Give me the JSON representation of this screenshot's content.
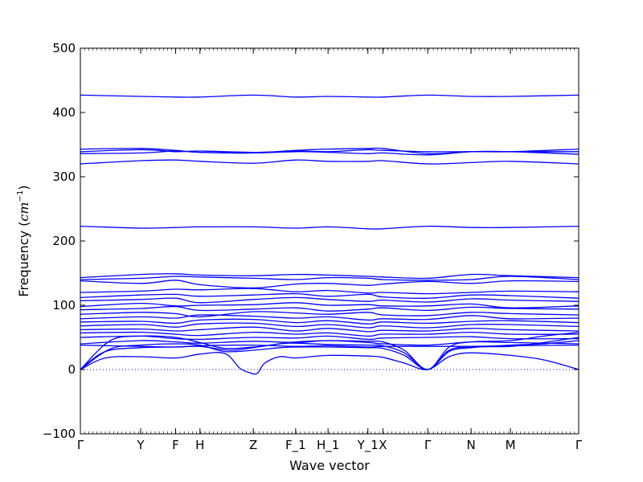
{
  "chart_data": {
    "type": "line",
    "title": "",
    "xlabel": "Wave vector",
    "ylabel_text": "Frequency (",
    "ylabel_unit_base": "cm",
    "ylabel_unit_exp": "−1",
    "ylabel_close": ")",
    "ylim": [
      -100,
      500
    ],
    "yticks": [
      -100,
      0,
      100,
      200,
      300,
      400,
      500
    ],
    "ytick_labels": [
      "−100",
      "0",
      "100",
      "200",
      "300",
      "400",
      "500"
    ],
    "x_high_symmetry_points": [
      {
        "label": "Γ",
        "x": 0.0
      },
      {
        "label": "Y",
        "x": 0.121
      },
      {
        "label": "F",
        "x": 0.191
      },
      {
        "label": "H",
        "x": 0.24
      },
      {
        "label": "Z",
        "x": 0.347
      },
      {
        "label": "F_1",
        "x": 0.432
      },
      {
        "label": "H_1",
        "x": 0.497
      },
      {
        "label": "Y_1",
        "x": 0.577
      },
      {
        "label": "X",
        "x": 0.607
      },
      {
        "label": "Γ",
        "x": 0.697
      },
      {
        "label": "N",
        "x": 0.784
      },
      {
        "label": "M",
        "x": 0.863
      },
      {
        "label": "Γ",
        "x": 1.0
      }
    ],
    "xlim": [
      0,
      1
    ],
    "zero_line": true,
    "line_color": "#0000ff",
    "series": [
      {
        "x": [
          0,
          0.121,
          0.191,
          0.24,
          0.347,
          0.432,
          0.497,
          0.577,
          0.607,
          0.697,
          0.784,
          0.863,
          1
        ],
        "values": [
          427,
          425,
          424,
          424,
          427,
          424,
          425,
          424,
          424,
          427,
          425,
          425,
          427
        ]
      },
      {
        "x": [
          0,
          0.121,
          0.191,
          0.24,
          0.347,
          0.432,
          0.497,
          0.577,
          0.607,
          0.697,
          0.784,
          0.863,
          1
        ],
        "values": [
          343,
          344,
          341,
          338,
          337,
          341,
          343,
          344,
          344,
          336,
          339,
          339,
          343
        ]
      },
      {
        "x": [
          0,
          0.121,
          0.191,
          0.24,
          0.347,
          0.432,
          0.497,
          0.577,
          0.607,
          0.697,
          0.784,
          0.863,
          1
        ],
        "values": [
          339,
          342,
          339,
          340,
          338,
          340,
          339,
          342,
          341,
          339,
          339,
          339,
          339
        ]
      },
      {
        "x": [
          0,
          0.121,
          0.191,
          0.24,
          0.347,
          0.432,
          0.497,
          0.577,
          0.607,
          0.697,
          0.784,
          0.863,
          1
        ],
        "values": [
          336,
          337,
          340,
          338,
          337,
          339,
          338,
          336,
          337,
          334,
          339,
          339,
          335
        ]
      },
      {
        "x": [
          0,
          0.121,
          0.191,
          0.24,
          0.347,
          0.432,
          0.497,
          0.577,
          0.607,
          0.697,
          0.784,
          0.863,
          1
        ],
        "values": [
          320,
          325,
          326,
          324,
          321,
          326,
          324,
          324,
          325,
          320,
          322,
          324,
          320
        ]
      },
      {
        "x": [
          0,
          0.121,
          0.191,
          0.24,
          0.347,
          0.432,
          0.497,
          0.577,
          0.607,
          0.697,
          0.784,
          0.863,
          1
        ],
        "values": [
          223,
          220,
          221,
          222,
          222,
          220,
          222,
          219,
          219,
          223,
          221,
          221,
          223
        ]
      },
      {
        "x": [
          0,
          0.121,
          0.191,
          0.24,
          0.347,
          0.432,
          0.497,
          0.577,
          0.607,
          0.697,
          0.784,
          0.863,
          1
        ],
        "values": [
          143,
          148,
          149,
          147,
          146,
          148,
          147,
          145,
          144,
          142,
          148,
          146,
          143
        ]
      },
      {
        "x": [
          0,
          0.121,
          0.191,
          0.24,
          0.347,
          0.432,
          0.497,
          0.577,
          0.607,
          0.697,
          0.784,
          0.863,
          1
        ],
        "values": [
          140,
          142,
          145,
          144,
          142,
          140,
          143,
          142,
          140,
          139,
          140,
          145,
          140
        ]
      },
      {
        "x": [
          0,
          0.121,
          0.191,
          0.24,
          0.347,
          0.432,
          0.497,
          0.577,
          0.607,
          0.697,
          0.784,
          0.863,
          1
        ],
        "values": [
          138,
          134,
          139,
          132,
          127,
          133,
          134,
          131,
          133,
          137,
          134,
          138,
          137
        ]
      },
      {
        "x": [
          0,
          0.121,
          0.191,
          0.24,
          0.347,
          0.432,
          0.497,
          0.577,
          0.607,
          0.697,
          0.784,
          0.863,
          1
        ],
        "values": [
          120,
          122,
          125,
          124,
          126,
          121,
          123,
          119,
          120,
          118,
          120,
          122,
          121
        ]
      },
      {
        "x": [
          0,
          0.121,
          0.191,
          0.24,
          0.347,
          0.432,
          0.497,
          0.577,
          0.607,
          0.697,
          0.784,
          0.863,
          1
        ],
        "values": [
          112,
          116,
          117,
          114,
          116,
          118,
          114,
          117,
          113,
          111,
          116,
          115,
          111
        ]
      },
      {
        "x": [
          0,
          0.121,
          0.191,
          0.24,
          0.347,
          0.432,
          0.497,
          0.577,
          0.607,
          0.697,
          0.784,
          0.863,
          1
        ],
        "values": [
          107,
          109,
          111,
          104,
          109,
          112,
          109,
          106,
          108,
          105,
          110,
          108,
          106
        ]
      },
      {
        "x": [
          0,
          0.121,
          0.191,
          0.24,
          0.347,
          0.432,
          0.497,
          0.577,
          0.607,
          0.697,
          0.784,
          0.863,
          1
        ],
        "values": [
          98,
          103,
          99,
          100,
          101,
          104,
          100,
          101,
          99,
          99,
          102,
          96,
          99
        ]
      },
      {
        "x": [
          0,
          0.121,
          0.191,
          0.24,
          0.347,
          0.432,
          0.497,
          0.577,
          0.607,
          0.697,
          0.784,
          0.863,
          1
        ],
        "values": [
          93,
          95,
          98,
          92,
          94,
          96,
          91,
          94,
          96,
          92,
          97,
          95,
          94
        ]
      },
      {
        "x": [
          0,
          0.121,
          0.191,
          0.24,
          0.347,
          0.432,
          0.497,
          0.577,
          0.607,
          0.697,
          0.784,
          0.863,
          1
        ],
        "values": [
          86,
          89,
          87,
          82,
          90,
          88,
          86,
          89,
          85,
          84,
          89,
          87,
          85
        ]
      },
      {
        "x": [
          0,
          0.121,
          0.191,
          0.24,
          0.347,
          0.432,
          0.497,
          0.577,
          0.607,
          0.697,
          0.784,
          0.863,
          1
        ],
        "values": [
          79,
          82,
          80,
          85,
          83,
          80,
          82,
          77,
          79,
          78,
          84,
          79,
          80
        ]
      },
      {
        "x": [
          0,
          0.121,
          0.191,
          0.24,
          0.347,
          0.432,
          0.497,
          0.577,
          0.607,
          0.697,
          0.784,
          0.863,
          1
        ],
        "values": [
          74,
          75,
          72,
          77,
          78,
          73,
          76,
          71,
          74,
          72,
          75,
          76,
          73
        ]
      },
      {
        "x": [
          0,
          0.121,
          0.191,
          0.24,
          0.347,
          0.432,
          0.497,
          0.577,
          0.607,
          0.697,
          0.784,
          0.863,
          1
        ],
        "values": [
          68,
          70,
          66,
          71,
          72,
          67,
          70,
          65,
          68,
          65,
          70,
          70,
          67
        ]
      },
      {
        "x": [
          0,
          0.121,
          0.191,
          0.24,
          0.347,
          0.432,
          0.497,
          0.577,
          0.607,
          0.697,
          0.784,
          0.863,
          1
        ],
        "values": [
          62,
          63,
          60,
          62,
          66,
          60,
          64,
          59,
          61,
          60,
          64,
          62,
          60
        ]
      },
      {
        "x": [
          0,
          0.121,
          0.191,
          0.24,
          0.347,
          0.432,
          0.497,
          0.577,
          0.607,
          0.697,
          0.784,
          0.863,
          1
        ],
        "values": [
          57,
          58,
          55,
          53,
          58,
          55,
          57,
          52,
          55,
          55,
          58,
          55,
          55
        ]
      },
      {
        "x": [
          0,
          0.121,
          0.191,
          0.24,
          0.347,
          0.432,
          0.497,
          0.577,
          0.607,
          0.697,
          0.784,
          0.863,
          1
        ],
        "values": [
          50,
          52,
          48,
          47,
          50,
          49,
          52,
          47,
          49,
          50,
          51,
          48,
          48
        ]
      },
      {
        "x": [
          0,
          0.121,
          0.191,
          0.24,
          0.347,
          0.432,
          0.497,
          0.577,
          0.607,
          0.697,
          0.784,
          0.863,
          1
        ],
        "values": [
          40,
          45,
          43,
          41,
          44,
          42,
          45,
          42,
          40,
          38,
          43,
          42,
          40
        ]
      },
      {
        "x": [
          0,
          0.121,
          0.191,
          0.24,
          0.347,
          0.432,
          0.497,
          0.577,
          0.607,
          0.697,
          0.784,
          0.863,
          1
        ],
        "values": [
          38,
          36,
          35,
          37,
          38,
          36,
          37,
          35,
          36,
          36,
          36,
          37,
          38
        ]
      },
      {
        "x": [
          0,
          0.06,
          0.121,
          0.191,
          0.24,
          0.29,
          0.347,
          0.4,
          0.432,
          0.497,
          0.577,
          0.607,
          0.65,
          0.697,
          0.74,
          0.784,
          0.863,
          0.93,
          1
        ],
        "values": [
          0,
          45,
          52,
          50,
          42,
          33,
          35,
          40,
          43,
          45,
          44,
          43,
          30,
          0,
          35,
          43,
          45,
          52,
          58
        ]
      },
      {
        "x": [
          0,
          0.06,
          0.121,
          0.191,
          0.24,
          0.29,
          0.347,
          0.4,
          0.432,
          0.497,
          0.577,
          0.607,
          0.65,
          0.697,
          0.74,
          0.784,
          0.863,
          0.93,
          1
        ],
        "values": [
          0,
          32,
          38,
          40,
          38,
          28,
          30,
          34,
          35,
          35,
          34,
          33,
          22,
          0,
          30,
          35,
          36,
          42,
          50
        ]
      },
      {
        "x": [
          0,
          0.05,
          0.121,
          0.191,
          0.24,
          0.29,
          0.32,
          0.34,
          0.355,
          0.37,
          0.4,
          0.432,
          0.497,
          0.577,
          0.607,
          0.65,
          0.697,
          0.74,
          0.784,
          0.863,
          0.93,
          1
        ],
        "values": [
          0,
          18,
          20,
          18,
          24,
          25,
          2,
          -5,
          -6,
          10,
          20,
          18,
          22,
          21,
          19,
          10,
          0,
          20,
          26,
          22,
          15,
          0
        ]
      },
      {
        "x": [
          0,
          0.05,
          0.121,
          0.191,
          0.24,
          0.3,
          0.347,
          0.4,
          0.432,
          0.497,
          0.577,
          0.607,
          0.65,
          0.697,
          0.74,
          0.784,
          0.863,
          0.93,
          1
        ],
        "values": [
          0,
          28,
          34,
          35,
          36,
          30,
          34,
          40,
          41,
          39,
          38,
          37,
          26,
          0,
          28,
          34,
          38,
          40,
          45
        ]
      }
    ]
  }
}
